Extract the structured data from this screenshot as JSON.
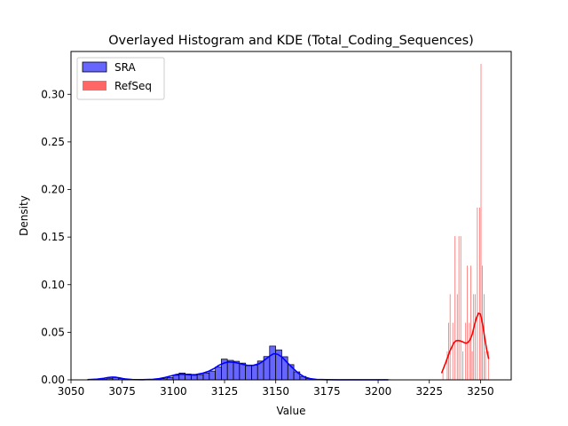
{
  "chart_data": {
    "type": "bar",
    "title": "Overlayed Histogram and KDE (Total_Coding_Sequences)",
    "xlabel": "Value",
    "ylabel": "Density",
    "xlim": [
      3050,
      3265
    ],
    "ylim": [
      0,
      0.345
    ],
    "xticks": [
      3050,
      3075,
      3100,
      3125,
      3150,
      3175,
      3200,
      3225,
      3250
    ],
    "yticks": [
      0.0,
      0.05,
      0.1,
      0.15,
      0.2,
      0.25,
      0.3
    ],
    "ytick_labels": [
      "0.00",
      "0.05",
      "0.10",
      "0.15",
      "0.20",
      "0.25",
      "0.30"
    ],
    "grid": false,
    "legend": {
      "position": "top-left",
      "entries": [
        "SRA",
        "RefSeq"
      ]
    },
    "series": [
      {
        "name": "SRA",
        "kind": "histogram",
        "color": "#0000ff",
        "bin_width": 2.95,
        "bins": [
          [
            3058.5,
            0.0002
          ],
          [
            3061.5,
            0.0002
          ],
          [
            3064.4,
            0.0005
          ],
          [
            3067.4,
            0.0017
          ],
          [
            3070.3,
            0.0025
          ],
          [
            3073.3,
            0.0014
          ],
          [
            3076.2,
            0.0004
          ],
          [
            3079.2,
            0.0002
          ],
          [
            3082.1,
            0.0002
          ],
          [
            3085.1,
            0.0002
          ],
          [
            3088.0,
            0.0002
          ],
          [
            3091.0,
            0.0005
          ],
          [
            3093.9,
            0.0012
          ],
          [
            3096.9,
            0.0024
          ],
          [
            3099.8,
            0.0048
          ],
          [
            3102.8,
            0.0072
          ],
          [
            3105.7,
            0.0062
          ],
          [
            3108.7,
            0.0048
          ],
          [
            3111.6,
            0.0055
          ],
          [
            3114.6,
            0.0072
          ],
          [
            3117.5,
            0.0092
          ],
          [
            3120.5,
            0.0135
          ],
          [
            3123.4,
            0.0218
          ],
          [
            3126.4,
            0.0205
          ],
          [
            3129.3,
            0.0195
          ],
          [
            3132.3,
            0.0176
          ],
          [
            3135.2,
            0.0148
          ],
          [
            3138.2,
            0.0155
          ],
          [
            3141.1,
            0.0198
          ],
          [
            3144.1,
            0.0245
          ],
          [
            3147.0,
            0.0355
          ],
          [
            3150.0,
            0.0315
          ],
          [
            3152.9,
            0.0243
          ],
          [
            3155.9,
            0.016
          ],
          [
            3158.8,
            0.0084
          ],
          [
            3161.8,
            0.0036
          ],
          [
            3164.7,
            0.0014
          ],
          [
            3167.7,
            0.0005
          ],
          [
            3170.6,
            0.0003
          ],
          [
            3173.6,
            0.0002
          ],
          [
            3176.5,
            0.0002
          ],
          [
            3179.5,
            0.0002
          ],
          [
            3182.4,
            0.0002
          ],
          [
            3185.4,
            0.0002
          ],
          [
            3188.3,
            0.0002
          ],
          [
            3191.3,
            0.0002
          ],
          [
            3194.2,
            0.0002
          ],
          [
            3197.2,
            0.0002
          ],
          [
            3200.1,
            0.0002
          ],
          [
            3203.1,
            0.0002
          ]
        ],
        "kde": {
          "x": [
            3058,
            3062,
            3066,
            3068,
            3070,
            3072,
            3074,
            3076,
            3080,
            3085,
            3090,
            3093,
            3096,
            3099,
            3101,
            3103,
            3106,
            3108,
            3111,
            3114,
            3117,
            3120,
            3122,
            3125,
            3127,
            3130,
            3133,
            3136,
            3139,
            3142,
            3145,
            3147,
            3149,
            3151,
            3153,
            3155,
            3158,
            3161,
            3164,
            3167,
            3170,
            3175,
            3180,
            3190,
            3205
          ],
          "y": [
            0.0002,
            0.0006,
            0.0016,
            0.0024,
            0.0029,
            0.0027,
            0.0019,
            0.001,
            0.0003,
            0.0002,
            0.0005,
            0.0012,
            0.0025,
            0.0042,
            0.0054,
            0.006,
            0.0057,
            0.0053,
            0.0056,
            0.0068,
            0.0088,
            0.012,
            0.015,
            0.0178,
            0.0188,
            0.0183,
            0.0168,
            0.0153,
            0.0152,
            0.017,
            0.0215,
            0.025,
            0.0275,
            0.0268,
            0.024,
            0.0195,
            0.013,
            0.007,
            0.003,
            0.0011,
            0.0004,
            0.0002,
            0.0001,
            0.0001,
            0.0001
          ]
        }
      },
      {
        "name": "RefSeq",
        "kind": "histogram",
        "color": "#ff0000",
        "bin_width": 0.33,
        "bins": [
          [
            3231.5,
            0.008
          ],
          [
            3233.6,
            0.03
          ],
          [
            3234.3,
            0.06
          ],
          [
            3235.0,
            0.09
          ],
          [
            3236.3,
            0.06
          ],
          [
            3237.4,
            0.151
          ],
          [
            3238.5,
            0.09
          ],
          [
            3239.3,
            0.151
          ],
          [
            3240.2,
            0.151
          ],
          [
            3241.2,
            0.03
          ],
          [
            3242.6,
            0.06
          ],
          [
            3243.4,
            0.12
          ],
          [
            3244.4,
            0.06
          ],
          [
            3245.1,
            0.12
          ],
          [
            3245.8,
            0.03
          ],
          [
            3246.5,
            0.09
          ],
          [
            3247.2,
            0.09
          ],
          [
            3248.3,
            0.181
          ],
          [
            3249.5,
            0.181
          ],
          [
            3250.1,
            0.332
          ],
          [
            3250.8,
            0.12
          ],
          [
            3251.6,
            0.09
          ],
          [
            3252.3,
            0.03
          ],
          [
            3253.7,
            0.03
          ]
        ],
        "kde": {
          "x": [
            3231,
            3233,
            3235,
            3237,
            3238,
            3239,
            3240,
            3241,
            3242,
            3243,
            3244,
            3245,
            3246,
            3247,
            3248,
            3249,
            3250,
            3251,
            3252,
            3253,
            3254
          ],
          "y": [
            0.007,
            0.018,
            0.03,
            0.039,
            0.041,
            0.0413,
            0.041,
            0.0402,
            0.0392,
            0.0385,
            0.0396,
            0.0425,
            0.048,
            0.057,
            0.065,
            0.07,
            0.069,
            0.059,
            0.045,
            0.032,
            0.022
          ]
        }
      }
    ]
  }
}
